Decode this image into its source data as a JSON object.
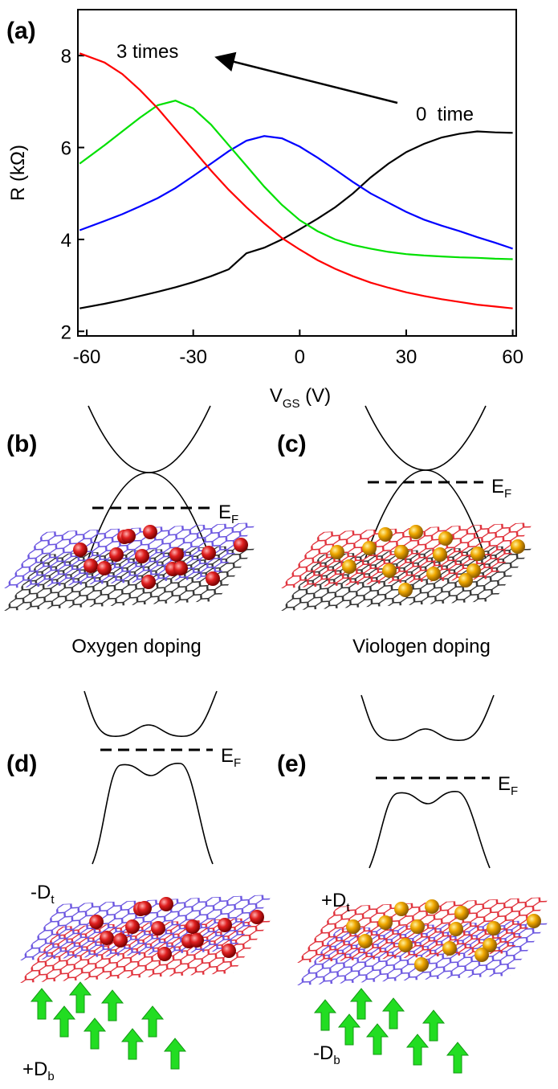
{
  "chart_data": {
    "type": "line",
    "panel_label": "(a)",
    "y_label": "R (kΩ)",
    "x_label": {
      "main": "V",
      "sub": "GS",
      "tail": " (V)"
    },
    "annotations": [
      "3 times",
      "0  time"
    ],
    "x": [
      -62,
      -55,
      -50,
      -45,
      -40,
      -35,
      -30,
      -25,
      -20,
      -15,
      -10,
      -5,
      0,
      5,
      10,
      15,
      20,
      25,
      30,
      35,
      40,
      45,
      50,
      55,
      60
    ],
    "series": [
      {
        "color": "#000000",
        "values": [
          2.5,
          2.6,
          2.68,
          2.77,
          2.86,
          2.96,
          3.07,
          3.2,
          3.35,
          3.7,
          3.82,
          4.0,
          4.22,
          4.45,
          4.7,
          5.0,
          5.35,
          5.65,
          5.9,
          6.08,
          6.22,
          6.3,
          6.35,
          6.33,
          6.32
        ]
      },
      {
        "color": "#0000ff",
        "values": [
          4.2,
          4.4,
          4.55,
          4.72,
          4.9,
          5.12,
          5.38,
          5.65,
          5.92,
          6.15,
          6.25,
          6.2,
          6.02,
          5.78,
          5.52,
          5.25,
          5.0,
          4.8,
          4.6,
          4.43,
          4.3,
          4.18,
          4.05,
          3.93,
          3.8
        ]
      },
      {
        "color": "#00e000",
        "values": [
          5.65,
          6.05,
          6.35,
          6.65,
          6.92,
          7.02,
          6.85,
          6.5,
          6.05,
          5.6,
          5.15,
          4.75,
          4.42,
          4.18,
          4.0,
          3.88,
          3.8,
          3.73,
          3.68,
          3.65,
          3.63,
          3.61,
          3.6,
          3.58,
          3.57
        ]
      },
      {
        "color": "#ff0000",
        "values": [
          8.05,
          7.85,
          7.6,
          7.25,
          6.85,
          6.4,
          5.95,
          5.5,
          5.08,
          4.7,
          4.35,
          4.03,
          3.78,
          3.55,
          3.36,
          3.2,
          3.06,
          2.95,
          2.85,
          2.77,
          2.7,
          2.64,
          2.58,
          2.54,
          2.5
        ]
      }
    ],
    "xlim": [
      -62.5,
      61
    ],
    "xticks": [
      -60,
      -30,
      0,
      30,
      60
    ],
    "ylim": [
      1.9,
      9
    ],
    "yticks": [
      2,
      4,
      6,
      8
    ]
  },
  "panels": [
    {
      "label": "(b)",
      "fermi": {
        "main": "E",
        "sub": "F"
      },
      "caption": "Oxygen doping"
    },
    {
      "label": "(c)",
      "fermi": {
        "main": "E",
        "sub": "F"
      },
      "caption": "Viologen doping"
    },
    {
      "label": "(d)",
      "fermi": {
        "main": "E",
        "sub": "F"
      },
      "top_field": {
        "main": "-D",
        "sub": "t"
      },
      "bottom_field": {
        "main": "+D",
        "sub": "b"
      }
    },
    {
      "label": "(e)",
      "fermi": {
        "main": "E",
        "sub": "F"
      },
      "top_field": {
        "main": "+D",
        "sub": "t"
      },
      "bottom_field": {
        "main": "-D",
        "sub": "b"
      }
    }
  ]
}
